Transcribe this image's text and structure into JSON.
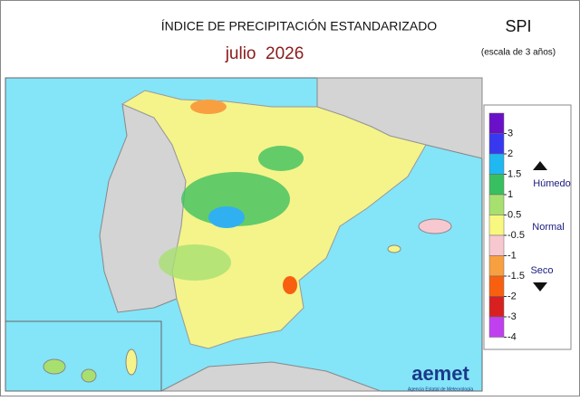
{
  "header": {
    "title": "ÍNDICE DE PRECIPITACIÓN ESTANDARIZADO",
    "date": "julio  2026",
    "index": "SPI",
    "scale": "(escala de 3 años)"
  },
  "legend": {
    "ticks": [
      3,
      2,
      1.5,
      1,
      0.5,
      -0.5,
      -1,
      -1.5,
      -2,
      -3,
      -4
    ],
    "colors": [
      "#6a10c8",
      "#3838f0",
      "#20b8f0",
      "#38c060",
      "#a8e070",
      "#f8f880",
      "#f8c8d0",
      "#f8a040",
      "#f86010",
      "#d82020",
      "#c040f0"
    ],
    "wet": "Húmedo",
    "normal": "Normal",
    "dry": "Seco"
  },
  "logo": {
    "name": "aemet",
    "agency": "Agencia Estatal de Meteorología"
  }
}
